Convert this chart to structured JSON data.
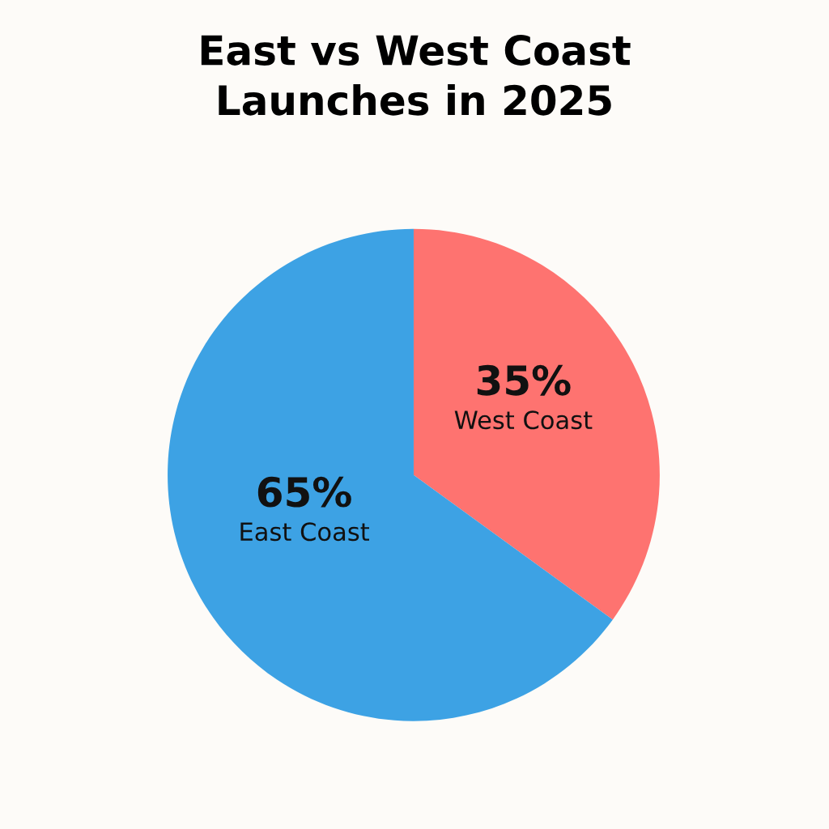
{
  "chart_data": {
    "type": "pie",
    "title": "East vs West Coast\nLaunches in 2025",
    "categories": [
      "West Coast",
      "East Coast"
    ],
    "values": [
      35,
      65
    ],
    "colors": [
      "#fe7370",
      "#3da2e4"
    ],
    "value_labels": [
      "35%",
      "65%"
    ],
    "legend": false
  }
}
